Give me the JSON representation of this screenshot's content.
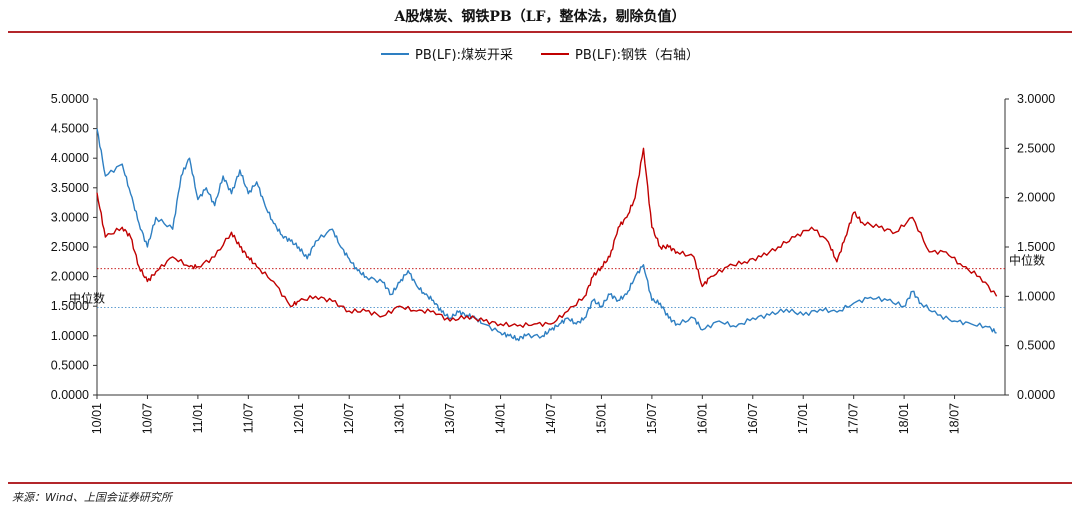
{
  "title": "A股煤炭、钢铁PB（LF，整体法，剔除负值）",
  "source": "来源：Wind、上国会证券研究所",
  "colors": {
    "coal": "#2e7fc2",
    "steel": "#c00000",
    "rule": "#b3262b"
  },
  "chart_data": {
    "type": "line",
    "x_tick_labels": [
      "10/01",
      "10/07",
      "11/01",
      "11/07",
      "12/01",
      "12/07",
      "13/01",
      "13/07",
      "14/01",
      "14/07",
      "15/01",
      "15/07",
      "16/01",
      "16/07",
      "17/01",
      "17/07",
      "18/01",
      "18/07"
    ],
    "x_range": [
      "2010-01",
      "2018-12"
    ],
    "y_left": {
      "min": 0,
      "max": 5,
      "ticks": [
        "0.0000",
        "0.5000",
        "1.0000",
        "1.5000",
        "2.0000",
        "2.5000",
        "3.0000",
        "3.5000",
        "4.0000",
        "4.5000",
        "5.0000"
      ]
    },
    "y_right": {
      "min": 0,
      "max": 3,
      "ticks": [
        "0.0000",
        "0.5000",
        "1.0000",
        "1.5000",
        "2.0000",
        "2.5000",
        "3.0000"
      ]
    },
    "legend_position": "top-center",
    "series": [
      {
        "name": "PB(LF):煤炭开采",
        "axis": "left",
        "color": "#2e7fc2",
        "x": [
          "2010-01",
          "2010-02",
          "2010-04",
          "2010-05",
          "2010-06",
          "2010-07",
          "2010-08",
          "2010-10",
          "2010-11",
          "2010-12",
          "2011-01",
          "2011-02",
          "2011-03",
          "2011-04",
          "2011-05",
          "2011-06",
          "2011-07",
          "2011-08",
          "2011-09",
          "2011-10",
          "2011-11",
          "2011-12",
          "2012-01",
          "2012-02",
          "2012-03",
          "2012-05",
          "2012-06",
          "2012-07",
          "2012-08",
          "2012-09",
          "2012-11",
          "2012-12",
          "2013-01",
          "2013-02",
          "2013-03",
          "2013-04",
          "2013-05",
          "2013-06",
          "2013-07",
          "2013-08",
          "2013-09",
          "2013-10",
          "2013-11",
          "2014-01",
          "2014-02",
          "2014-03",
          "2014-04",
          "2014-06",
          "2014-07",
          "2014-08",
          "2014-09",
          "2014-10",
          "2014-11",
          "2014-12",
          "2015-01",
          "2015-02",
          "2015-03",
          "2015-04",
          "2015-05",
          "2015-06",
          "2015-07",
          "2015-08",
          "2015-09",
          "2015-10",
          "2015-12",
          "2016-01",
          "2016-03",
          "2016-05",
          "2016-07",
          "2016-09",
          "2016-11",
          "2017-01",
          "2017-03",
          "2017-05",
          "2017-07",
          "2017-09",
          "2017-11",
          "2018-01",
          "2018-02",
          "2018-03",
          "2018-05",
          "2018-07",
          "2018-09",
          "2018-11",
          "2018-12"
        ],
        "y": [
          4.5,
          3.7,
          3.9,
          3.4,
          2.9,
          2.5,
          3.0,
          2.8,
          3.7,
          4.0,
          3.3,
          3.5,
          3.2,
          3.7,
          3.4,
          3.8,
          3.4,
          3.6,
          3.2,
          2.9,
          2.7,
          2.6,
          2.5,
          2.3,
          2.6,
          2.8,
          2.5,
          2.3,
          2.1,
          2.0,
          1.9,
          1.7,
          1.9,
          2.1,
          1.85,
          1.7,
          1.6,
          1.4,
          1.3,
          1.4,
          1.35,
          1.3,
          1.2,
          1.05,
          1.0,
          0.95,
          1.0,
          1.0,
          1.1,
          1.2,
          1.3,
          1.2,
          1.3,
          1.6,
          1.5,
          1.7,
          1.6,
          1.7,
          2.0,
          2.2,
          1.6,
          1.55,
          1.3,
          1.2,
          1.3,
          1.1,
          1.25,
          1.15,
          1.3,
          1.35,
          1.45,
          1.35,
          1.45,
          1.4,
          1.55,
          1.65,
          1.6,
          1.5,
          1.75,
          1.55,
          1.35,
          1.25,
          1.2,
          1.15,
          1.05
        ]
      },
      {
        "name": "PB(LF):钢铁（右轴）",
        "axis": "right",
        "color": "#c00000",
        "x": [
          "2010-01",
          "2010-02",
          "2010-04",
          "2010-05",
          "2010-06",
          "2010-07",
          "2010-08",
          "2010-10",
          "2010-12",
          "2011-01",
          "2011-03",
          "2011-05",
          "2011-06",
          "2011-07",
          "2011-08",
          "2011-10",
          "2011-12",
          "2012-01",
          "2012-03",
          "2012-05",
          "2012-07",
          "2012-09",
          "2012-11",
          "2013-01",
          "2013-03",
          "2013-05",
          "2013-07",
          "2013-09",
          "2013-11",
          "2014-01",
          "2014-03",
          "2014-05",
          "2014-07",
          "2014-09",
          "2014-11",
          "2014-12",
          "2015-01",
          "2015-02",
          "2015-03",
          "2015-04",
          "2015-05",
          "2015-06",
          "2015-07",
          "2015-08",
          "2015-09",
          "2015-10",
          "2015-12",
          "2016-01",
          "2016-02",
          "2016-04",
          "2016-06",
          "2016-08",
          "2016-10",
          "2016-12",
          "2017-02",
          "2017-04",
          "2017-05",
          "2017-06",
          "2017-07",
          "2017-08",
          "2017-10",
          "2017-12",
          "2018-02",
          "2018-04",
          "2018-06",
          "2018-08",
          "2018-10",
          "2018-12"
        ],
        "y": [
          2.05,
          1.6,
          1.7,
          1.6,
          1.3,
          1.15,
          1.25,
          1.4,
          1.3,
          1.3,
          1.4,
          1.65,
          1.5,
          1.4,
          1.3,
          1.15,
          0.9,
          0.95,
          1.0,
          0.95,
          0.85,
          0.85,
          0.8,
          0.9,
          0.85,
          0.85,
          0.75,
          0.8,
          0.75,
          0.72,
          0.7,
          0.72,
          0.72,
          0.85,
          1.0,
          1.2,
          1.3,
          1.4,
          1.7,
          1.8,
          2.0,
          2.5,
          1.7,
          1.5,
          1.5,
          1.45,
          1.4,
          1.1,
          1.2,
          1.3,
          1.35,
          1.4,
          1.5,
          1.6,
          1.7,
          1.55,
          1.35,
          1.6,
          1.85,
          1.75,
          1.7,
          1.65,
          1.8,
          1.45,
          1.45,
          1.3,
          1.2,
          1.0
        ]
      }
    ],
    "reference_lines": [
      {
        "label": "中位数",
        "axis": "left",
        "value": 1.48,
        "color": "#2e7fc2"
      },
      {
        "label": "中位数",
        "axis": "right",
        "value": 1.28,
        "color": "#c00000"
      }
    ]
  }
}
